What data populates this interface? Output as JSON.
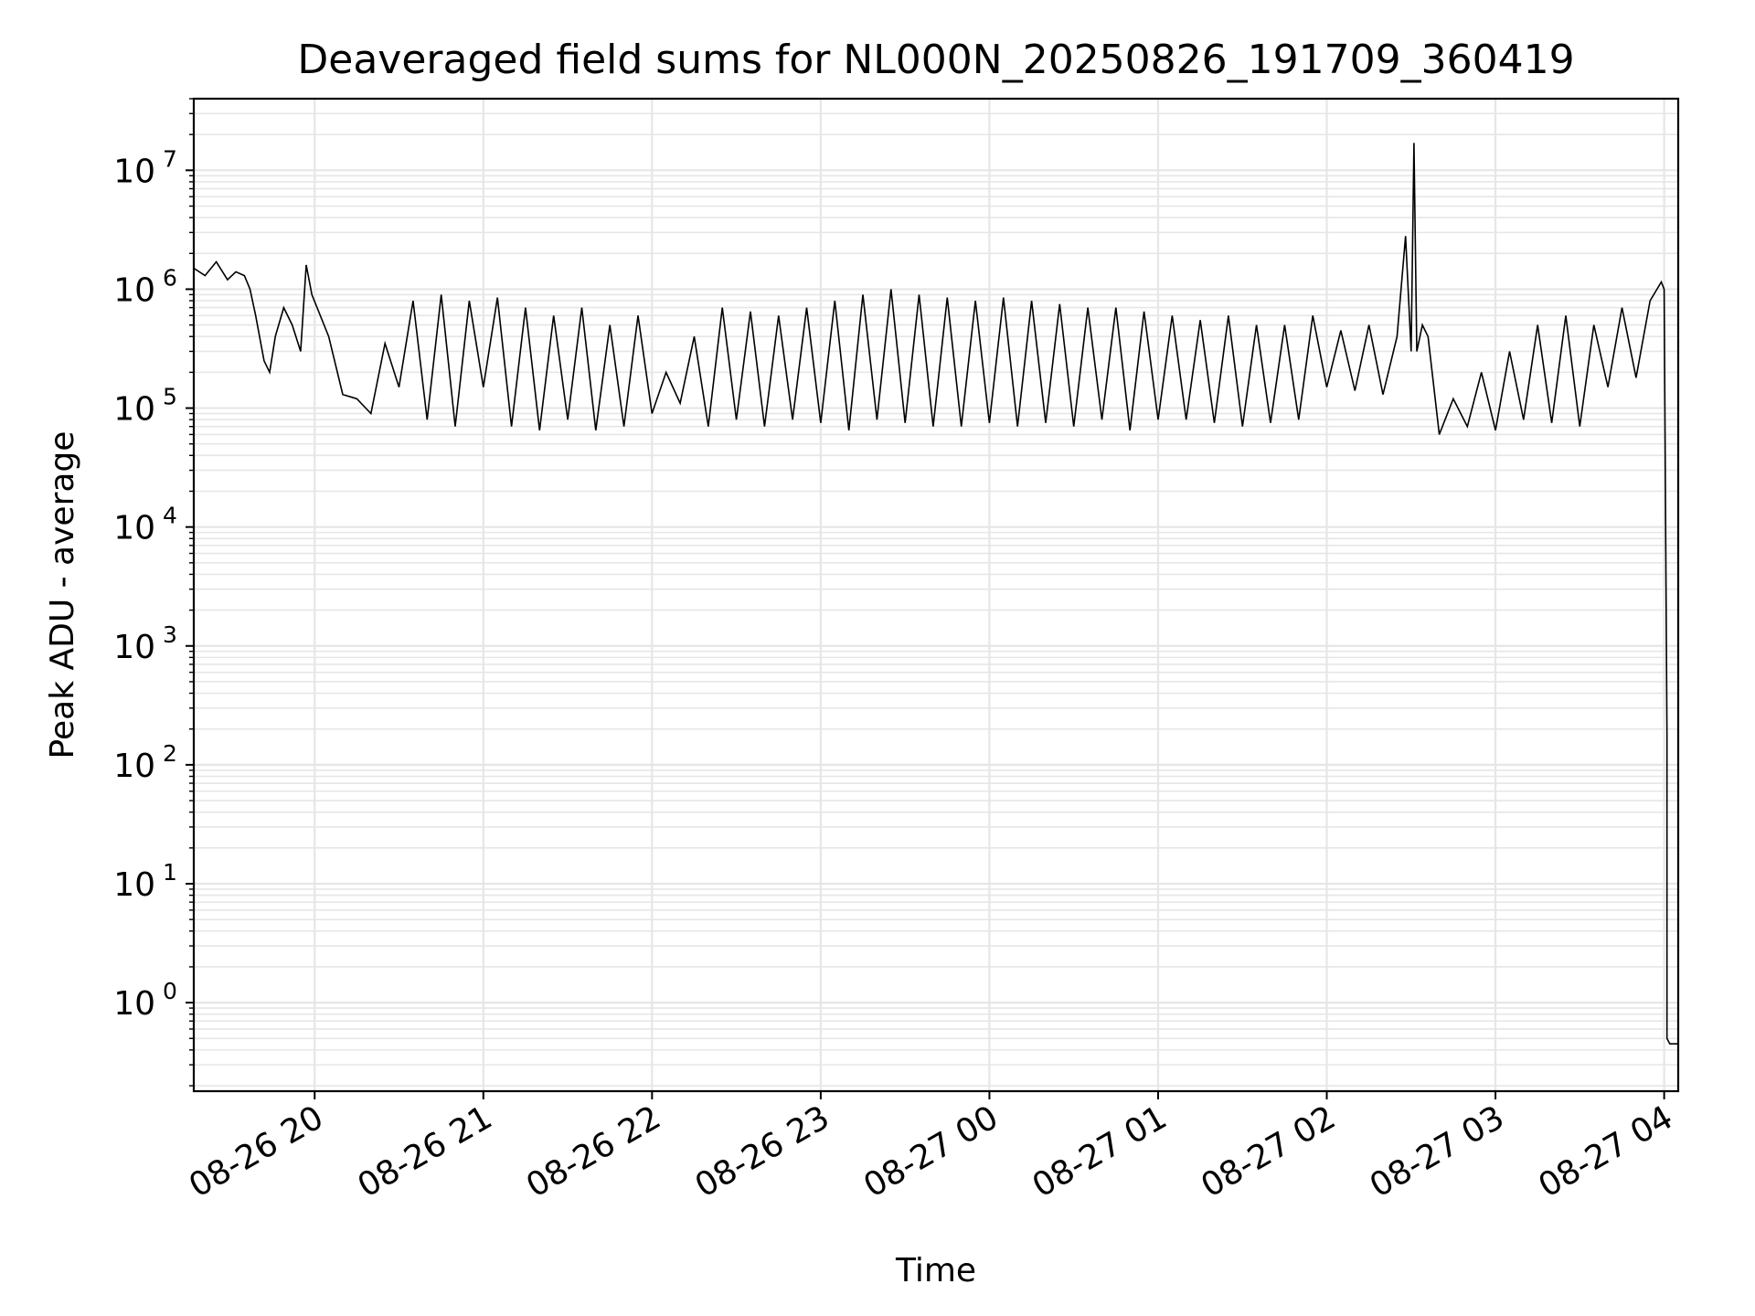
{
  "chart_data": {
    "type": "line",
    "title": "Deaveraged field sums for NL000N_20250826_191709_360419",
    "xlabel": "Time",
    "ylabel": "Peak ADU - average",
    "yscale": "log",
    "ylim": [
      0.18,
      40000000
    ],
    "xlim": [
      "2025-08-26 19:17",
      "2025-08-27 04:05"
    ],
    "grid": "on",
    "legend": "none",
    "line_color": "#000000",
    "grid_color": "#e6e6e6",
    "x_ticks": [
      {
        "label": "08-26 20",
        "t": "2025-08-26 20:00"
      },
      {
        "label": "08-26 21",
        "t": "2025-08-26 21:00"
      },
      {
        "label": "08-26 22",
        "t": "2025-08-26 22:00"
      },
      {
        "label": "08-26 23",
        "t": "2025-08-26 23:00"
      },
      {
        "label": "08-27 00",
        "t": "2025-08-27 00:00"
      },
      {
        "label": "08-27 01",
        "t": "2025-08-27 01:00"
      },
      {
        "label": "08-27 02",
        "t": "2025-08-27 02:00"
      },
      {
        "label": "08-27 03",
        "t": "2025-08-27 03:00"
      },
      {
        "label": "08-27 04",
        "t": "2025-08-27 04:00"
      }
    ],
    "y_ticks": [
      {
        "base": "10",
        "exp": "0",
        "value": 1
      },
      {
        "base": "10",
        "exp": "1",
        "value": 10
      },
      {
        "base": "10",
        "exp": "2",
        "value": 100
      },
      {
        "base": "10",
        "exp": "3",
        "value": 1000
      },
      {
        "base": "10",
        "exp": "4",
        "value": 10000
      },
      {
        "base": "10",
        "exp": "5",
        "value": 100000
      },
      {
        "base": "10",
        "exp": "6",
        "value": 1000000
      },
      {
        "base": "10",
        "exp": "7",
        "value": 10000000
      }
    ],
    "series": [
      {
        "x": [
          "2025-08-26 19:17",
          "2025-08-26 19:21",
          "2025-08-26 19:25",
          "2025-08-26 19:29",
          "2025-08-26 19:32",
          "2025-08-26 19:35",
          "2025-08-26 19:37",
          "2025-08-26 19:39",
          "2025-08-26 19:42",
          "2025-08-26 19:44",
          "2025-08-26 19:46",
          "2025-08-26 19:49",
          "2025-08-26 19:52",
          "2025-08-26 19:55",
          "2025-08-26 19:57",
          "2025-08-26 19:59",
          "2025-08-26 20:05",
          "2025-08-26 20:10",
          "2025-08-26 20:15",
          "2025-08-26 20:20",
          "2025-08-26 20:25",
          "2025-08-26 20:30",
          "2025-08-26 20:35",
          "2025-08-26 20:40",
          "2025-08-26 20:45",
          "2025-08-26 20:50",
          "2025-08-26 20:55",
          "2025-08-26 21:00",
          "2025-08-26 21:05",
          "2025-08-26 21:10",
          "2025-08-26 21:15",
          "2025-08-26 21:20",
          "2025-08-26 21:25",
          "2025-08-26 21:30",
          "2025-08-26 21:35",
          "2025-08-26 21:40",
          "2025-08-26 21:45",
          "2025-08-26 21:50",
          "2025-08-26 21:55",
          "2025-08-26 22:00",
          "2025-08-26 22:05",
          "2025-08-26 22:10",
          "2025-08-26 22:15",
          "2025-08-26 22:20",
          "2025-08-26 22:25",
          "2025-08-26 22:30",
          "2025-08-26 22:35",
          "2025-08-26 22:40",
          "2025-08-26 22:45",
          "2025-08-26 22:50",
          "2025-08-26 22:55",
          "2025-08-26 23:00",
          "2025-08-26 23:05",
          "2025-08-26 23:10",
          "2025-08-26 23:15",
          "2025-08-26 23:20",
          "2025-08-26 23:25",
          "2025-08-26 23:30",
          "2025-08-26 23:35",
          "2025-08-26 23:40",
          "2025-08-26 23:45",
          "2025-08-26 23:50",
          "2025-08-26 23:55",
          "2025-08-27 00:00",
          "2025-08-27 00:05",
          "2025-08-27 00:10",
          "2025-08-27 00:15",
          "2025-08-27 00:20",
          "2025-08-27 00:25",
          "2025-08-27 00:30",
          "2025-08-27 00:35",
          "2025-08-27 00:40",
          "2025-08-27 00:45",
          "2025-08-27 00:50",
          "2025-08-27 00:55",
          "2025-08-27 01:00",
          "2025-08-27 01:05",
          "2025-08-27 01:10",
          "2025-08-27 01:15",
          "2025-08-27 01:20",
          "2025-08-27 01:25",
          "2025-08-27 01:30",
          "2025-08-27 01:35",
          "2025-08-27 01:40",
          "2025-08-27 01:45",
          "2025-08-27 01:50",
          "2025-08-27 01:55",
          "2025-08-27 02:00",
          "2025-08-27 02:05",
          "2025-08-27 02:10",
          "2025-08-27 02:15",
          "2025-08-27 02:20",
          "2025-08-27 02:25",
          "2025-08-27 02:28",
          "2025-08-27 02:30",
          "2025-08-27 02:31",
          "2025-08-27 02:32",
          "2025-08-27 02:34",
          "2025-08-27 02:36",
          "2025-08-27 02:40",
          "2025-08-27 02:45",
          "2025-08-27 02:50",
          "2025-08-27 02:55",
          "2025-08-27 03:00",
          "2025-08-27 03:05",
          "2025-08-27 03:10",
          "2025-08-27 03:15",
          "2025-08-27 03:20",
          "2025-08-27 03:25",
          "2025-08-27 03:30",
          "2025-08-27 03:35",
          "2025-08-27 03:40",
          "2025-08-27 03:45",
          "2025-08-27 03:50",
          "2025-08-27 03:55",
          "2025-08-27 03:59",
          "2025-08-27 04:00",
          "2025-08-27 04:01",
          "2025-08-27 04:01",
          "2025-08-27 04:02",
          "2025-08-27 04:03",
          "2025-08-27 04:04",
          "2025-08-27 04:05"
        ],
        "y": [
          1500000,
          1300000,
          1700000,
          1200000,
          1400000,
          1300000,
          1000000,
          600000,
          250000,
          200000,
          400000,
          700000,
          500000,
          300000,
          1600000,
          900000,
          400000,
          130000,
          120000,
          90000,
          350000,
          150000,
          800000,
          80000,
          900000,
          70000,
          800000,
          150000,
          850000,
          70000,
          700000,
          65000,
          600000,
          80000,
          700000,
          65000,
          500000,
          70000,
          600000,
          90000,
          200000,
          110000,
          400000,
          70000,
          700000,
          80000,
          650000,
          70000,
          600000,
          80000,
          700000,
          75000,
          800000,
          65000,
          900000,
          80000,
          1000000,
          75000,
          900000,
          70000,
          850000,
          70000,
          800000,
          75000,
          850000,
          70000,
          800000,
          75000,
          750000,
          70000,
          700000,
          80000,
          700000,
          65000,
          650000,
          80000,
          600000,
          80000,
          550000,
          75000,
          600000,
          70000,
          500000,
          75000,
          500000,
          80000,
          600000,
          150000,
          450000,
          140000,
          500000,
          130000,
          400000,
          2800000,
          300000,
          17000000,
          300000,
          500000,
          400000,
          60000,
          120000,
          70000,
          200000,
          65000,
          300000,
          80000,
          500000,
          75000,
          600000,
          70000,
          500000,
          150000,
          700000,
          180000,
          800000,
          1150000,
          1000000,
          180,
          0.5,
          0.45,
          0.45,
          0.45,
          0.45
        ]
      }
    ]
  }
}
